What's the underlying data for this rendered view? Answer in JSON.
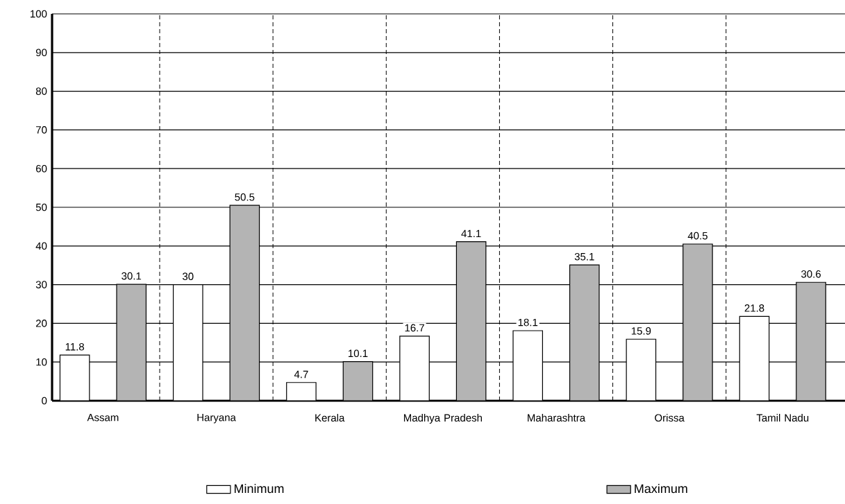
{
  "chart_data": {
    "type": "bar",
    "categories": [
      "Assam",
      "Haryana",
      "Kerala",
      "Madhya Pradesh",
      "Maharashtra",
      "Orissa",
      "Tamil Nadu"
    ],
    "series": [
      {
        "name": "Minimum",
        "color": "#ffffff",
        "values": [
          11.8,
          30,
          4.7,
          16.7,
          18.1,
          15.9,
          21.8
        ]
      },
      {
        "name": "Maximum",
        "color": "#b4b4b4",
        "values": [
          30.1,
          50.5,
          10.1,
          41.1,
          35.1,
          40.5,
          30.6
        ]
      }
    ],
    "ylim": [
      0,
      100
    ],
    "yticks": [
      0,
      10,
      20,
      30,
      40,
      50,
      60,
      70,
      80,
      90,
      100
    ],
    "grid": true,
    "legend": "bottom",
    "data_labels": true
  }
}
